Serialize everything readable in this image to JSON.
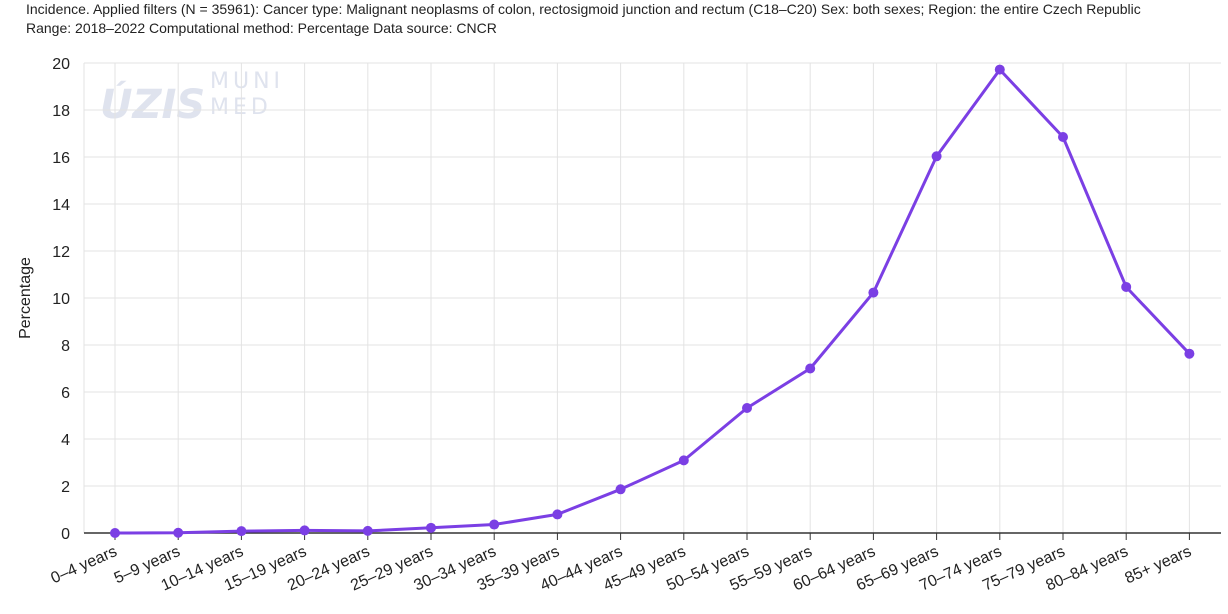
{
  "header": {
    "line1": "Incidence. Applied filters (N = 35961): Cancer type: Malignant neoplasms of colon, rectosigmoid junction and rectum (C18–C20) Sex: both sexes; Region: the entire Czech Republic",
    "line2": "Range: 2018–2022 Computational method: Percentage Data source: CNCR"
  },
  "watermark": {
    "left": "ÚZIS",
    "right_top": "MUNI",
    "right_bottom": "MED"
  },
  "colors": {
    "series": "#7b3fe4",
    "grid": "#e3e3e3",
    "axis": "#333333"
  },
  "chart_data": {
    "type": "line",
    "title": "",
    "xlabel": "",
    "ylabel": "Percentage",
    "ylim": [
      0,
      20
    ],
    "yticks": [
      0,
      2,
      4,
      6,
      8,
      10,
      12,
      14,
      16,
      18,
      20
    ],
    "grid": true,
    "legend": "none",
    "categories": [
      "0–4 years",
      "5–9 years",
      "10–14 years",
      "15–19 years",
      "20–24 years",
      "25–29 years",
      "30–34 years",
      "35–39 years",
      "40–44 years",
      "45–49 years",
      "50–54 years",
      "55–59 years",
      "60–64 years",
      "65–69 years",
      "70–74 years",
      "75–79 years",
      "80–84 years",
      "85+ years"
    ],
    "series": [
      {
        "values": [
          0.0,
          0.01,
          0.08,
          0.11,
          0.09,
          0.22,
          0.36,
          0.79,
          1.86,
          3.09,
          5.32,
          7.0,
          10.23,
          16.03,
          19.72,
          16.85,
          10.47,
          7.63
        ]
      }
    ]
  }
}
